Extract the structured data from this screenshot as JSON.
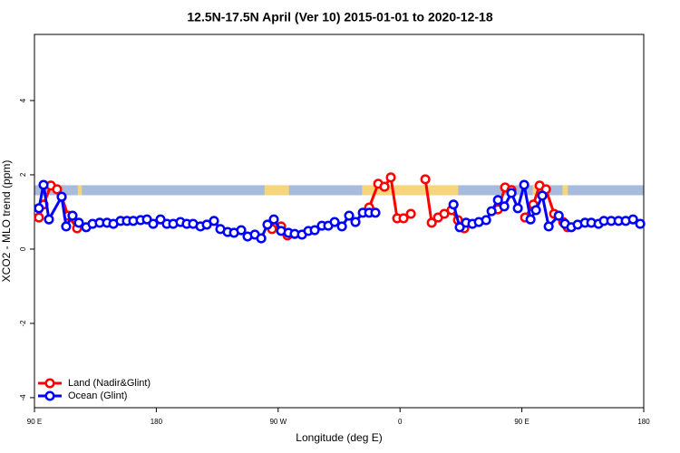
{
  "chart_data": {
    "type": "line",
    "title": "12.5N-17.5N April (Ver 10)   2015-01-01 to 2020-12-18",
    "x_label": "Longitude (deg E)",
    "y_label": "XCO2 - MLO trend (ppm)",
    "xlim": [
      90,
      540
    ],
    "ylim": [
      -4.27,
      5.78
    ],
    "xticks": [
      {
        "value": 90,
        "label": "90 E"
      },
      180,
      {
        "value": 270,
        "label": "90 W"
      },
      {
        "value": 360,
        "label": "0"
      },
      {
        "value": 450,
        "label": "90 E"
      },
      {
        "value": 540,
        "label": "180"
      }
    ],
    "yticks": [
      -4,
      -2,
      0,
      2,
      4
    ],
    "legend": "bottom-left",
    "band": {
      "ylim": [
        1.45,
        1.72
      ],
      "color": "#a7bcdc",
      "highlight_color": "#f7d57c",
      "highlight_ranges": [
        [
          122,
          125
        ],
        [
          260,
          278
        ],
        [
          332,
          403
        ],
        [
          458,
          468
        ],
        [
          480,
          484
        ]
      ]
    },
    "series": [
      {
        "name": "Land (Nadir&Glint)",
        "color": "#ff0000",
        "x": [
          93.3,
          96.7,
          102.1,
          106.7,
          110.1,
          114.8,
          121.5,
          190,
          265.5,
          272.2,
          276.9,
          310,
          337.2,
          343.9,
          348.5,
          353.2,
          357.9,
          362.6,
          368.0,
          373,
          378.7,
          383.4,
          388.1,
          392.7,
          398.1,
          402.8,
          407.5,
          420,
          432.3,
          437.6,
          442.3,
          447.5,
          452.4,
          458.4,
          463.1,
          467.8,
          473.8,
          480.5,
          483.8
        ],
        "values": [
          0.85,
          1.2,
          1.71,
          1.61,
          1.41,
          0.9,
          0.56,
          null,
          0.54,
          0.61,
          0.37,
          null,
          1.12,
          1.76,
          1.68,
          1.93,
          0.83,
          0.83,
          0.95,
          null,
          1.88,
          0.71,
          0.85,
          0.95,
          1.05,
          0.78,
          0.56,
          null,
          1.07,
          1.66,
          1.59,
          null,
          0.85,
          1.2,
          1.71,
          1.61,
          0.95,
          0.73,
          0.59
        ]
      },
      {
        "name": "Ocean (Glint)",
        "color": "#0000ff",
        "x": [
          93.3,
          96.7,
          100.7,
          110.1,
          113.4,
          118.1,
          122.8,
          128.2,
          132.9,
          138.2,
          143.6,
          148.3,
          153.6,
          158.3,
          163.0,
          168.4,
          173.1,
          177.7,
          183.1,
          187.8,
          192.5,
          197.8,
          202.5,
          207.2,
          212.6,
          217.3,
          222.6,
          227.3,
          232.7,
          237.4,
          242.7,
          247.4,
          252.8,
          257.5,
          262.1,
          266.8,
          272.2,
          277.6,
          282.2,
          287.6,
          292.3,
          297.0,
          302.3,
          307.0,
          311.7,
          317.1,
          322.4,
          327.1,
          332.5,
          337.2,
          341.8,
          370,
          399.5,
          404.1,
          408.8,
          413.5,
          418.2,
          423.6,
          427.6,
          432.3,
          437.0,
          442.3,
          447.0,
          451.7,
          456.4,
          460.4,
          465.1,
          469.8,
          477.2,
          481.8,
          486.5,
          491.2,
          496.6,
          501.3,
          506.6,
          510.6,
          516.0,
          521.4,
          526.7,
          532.1,
          537.4
        ],
        "values": [
          1.1,
          1.73,
          0.8,
          1.41,
          0.61,
          0.9,
          0.71,
          0.59,
          0.68,
          0.71,
          0.71,
          0.68,
          0.76,
          0.76,
          0.76,
          0.78,
          0.8,
          0.68,
          0.8,
          0.68,
          0.68,
          0.73,
          0.68,
          0.68,
          0.61,
          0.66,
          0.76,
          0.54,
          0.46,
          0.44,
          0.51,
          0.34,
          0.39,
          0.29,
          0.66,
          0.8,
          0.49,
          0.44,
          0.41,
          0.39,
          0.49,
          0.51,
          0.63,
          0.63,
          0.73,
          0.61,
          0.9,
          0.73,
          0.98,
          0.98,
          0.98,
          null,
          1.2,
          0.59,
          0.71,
          0.68,
          0.73,
          0.78,
          1.02,
          1.32,
          1.15,
          1.51,
          1.1,
          1.73,
          0.8,
          1.05,
          1.44,
          0.61,
          0.9,
          0.68,
          0.59,
          0.66,
          0.71,
          0.71,
          0.68,
          0.76,
          0.76,
          0.76,
          0.76,
          0.8,
          0.68
        ]
      }
    ]
  }
}
